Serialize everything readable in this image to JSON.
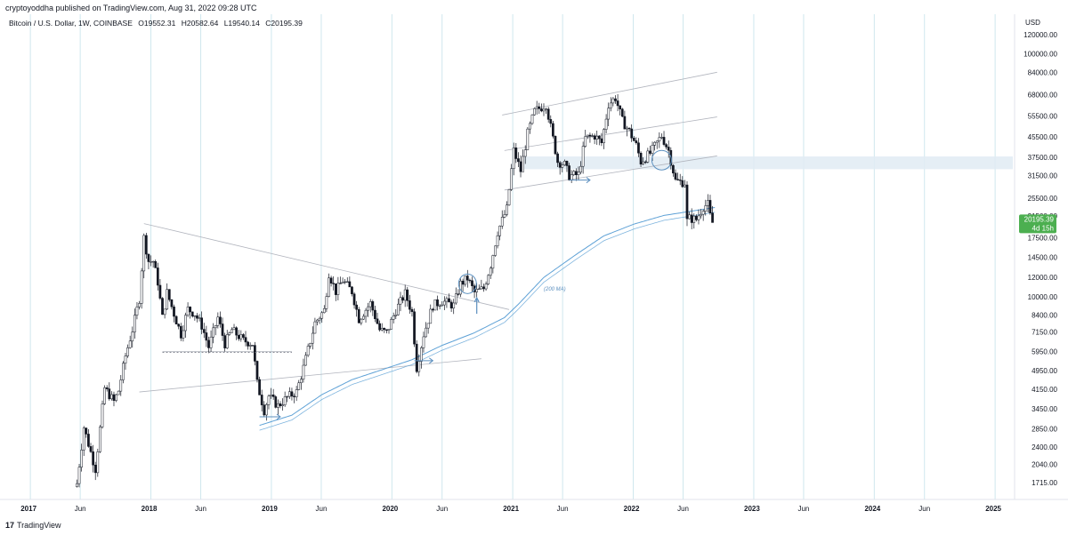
{
  "header": {
    "published_by": "cryptoyoddha published on TradingView.com, Aug 31, 2022 09:28 UTC",
    "symbol": "Bitcoin / U.S. Dollar, 1W, COINBASE",
    "open": "O19552.31",
    "high": "H20582.64",
    "low": "L19540.14",
    "close": "C20195.39"
  },
  "footer": {
    "logo_mark": "17",
    "brand": "TradingView"
  },
  "colors": {
    "candle": "#131722",
    "ma_line": "#5ea1d6",
    "trendline": "#b2b5be",
    "zone_fill": "#e1ebf3",
    "annotation": "#5b8fbf",
    "grid_vertical": "#cfe7ee",
    "price_badge": "#4caf50"
  },
  "chart_data": {
    "type": "candlestick",
    "title": "",
    "xlabel": "",
    "ylabel": "",
    "currency": "USD",
    "scale": "log",
    "ylim": [
      1500,
      140000
    ],
    "xlim": [
      "2016-10-01",
      "2025-03-01"
    ],
    "legend": "none",
    "grid": "vertical lines at yearly and half-yearly ticks",
    "x_ticks": [
      {
        "label": "2017",
        "date": "2017-01-01"
      },
      {
        "label": "Jun",
        "date": "2017-06-01"
      },
      {
        "label": "2018",
        "date": "2018-01-01"
      },
      {
        "label": "Jun",
        "date": "2018-06-01"
      },
      {
        "label": "2019",
        "date": "2019-01-01"
      },
      {
        "label": "Jun",
        "date": "2019-06-01"
      },
      {
        "label": "2020",
        "date": "2020-01-01"
      },
      {
        "label": "Jun",
        "date": "2020-06-01"
      },
      {
        "label": "2021",
        "date": "2021-01-01"
      },
      {
        "label": "Jun",
        "date": "2021-06-01"
      },
      {
        "label": "2022",
        "date": "2022-01-01"
      },
      {
        "label": "Jun",
        "date": "2022-06-01"
      },
      {
        "label": "2023",
        "date": "2023-01-01"
      },
      {
        "label": "Jun",
        "date": "2023-06-01"
      },
      {
        "label": "2024",
        "date": "2024-01-01"
      },
      {
        "label": "Jun",
        "date": "2024-06-01"
      },
      {
        "label": "2025",
        "date": "2025-01-01"
      }
    ],
    "y_ticks": [
      {
        "label": "120000.00",
        "value": 120000
      },
      {
        "label": "100000.00",
        "value": 100000
      },
      {
        "label": "84000.00",
        "value": 84000
      },
      {
        "label": "68000.00",
        "value": 68000
      },
      {
        "label": "55500.00",
        "value": 55500
      },
      {
        "label": "45500.00",
        "value": 45500
      },
      {
        "label": "37500.00",
        "value": 37500
      },
      {
        "label": "31500.00",
        "value": 31500
      },
      {
        "label": "25500.00",
        "value": 25500
      },
      {
        "label": "21500.00",
        "value": 21500
      },
      {
        "label": "17500.00",
        "value": 17500
      },
      {
        "label": "14500.00",
        "value": 14500
      },
      {
        "label": "12000.00",
        "value": 12000
      },
      {
        "label": "10000.00",
        "value": 10000
      },
      {
        "label": "8400.00",
        "value": 8400
      },
      {
        "label": "7150.00",
        "value": 7150
      },
      {
        "label": "5950.00",
        "value": 5950
      },
      {
        "label": "4950.00",
        "value": 4950
      },
      {
        "label": "4150.00",
        "value": 4150
      },
      {
        "label": "3450.00",
        "value": 3450
      },
      {
        "label": "2850.00",
        "value": 2850
      },
      {
        "label": "2400.00",
        "value": 2400
      },
      {
        "label": "2040.00",
        "value": 2040
      },
      {
        "label": "1715.00",
        "value": 1715
      }
    ],
    "last_price": {
      "label": "20195.39",
      "countdown": "4d 15h",
      "value": 20195.39
    },
    "price_path": [
      [
        "2017-05-22",
        1700
      ],
      [
        "2017-06-12",
        2900
      ],
      [
        "2017-07-17",
        1950
      ],
      [
        "2017-08-14",
        4200
      ],
      [
        "2017-09-11",
        3700
      ],
      [
        "2017-09-25",
        4100
      ],
      [
        "2017-10-16",
        5700
      ],
      [
        "2017-11-06",
        7300
      ],
      [
        "2017-11-27",
        9800
      ],
      [
        "2017-12-11",
        17500
      ],
      [
        "2017-12-25",
        14000
      ],
      [
        "2018-01-08",
        14000
      ],
      [
        "2018-01-22",
        11500
      ],
      [
        "2018-02-05",
        8200
      ],
      [
        "2018-02-19",
        10400
      ],
      [
        "2018-03-12",
        8500
      ],
      [
        "2018-04-02",
        7000
      ],
      [
        "2018-04-23",
        8900
      ],
      [
        "2018-05-14",
        8500
      ],
      [
        "2018-06-04",
        7600
      ],
      [
        "2018-06-25",
        6200
      ],
      [
        "2018-07-23",
        8200
      ],
      [
        "2018-08-13",
        6400
      ],
      [
        "2018-09-03",
        7300
      ],
      [
        "2018-10-08",
        6600
      ],
      [
        "2018-11-05",
        6400
      ],
      [
        "2018-11-19",
        4400
      ],
      [
        "2018-12-10",
        3400
      ],
      [
        "2018-12-24",
        3900
      ],
      [
        "2019-01-21",
        3550
      ],
      [
        "2019-02-18",
        3850
      ],
      [
        "2019-03-18",
        4050
      ],
      [
        "2019-04-08",
        5100
      ],
      [
        "2019-05-13",
        7800
      ],
      [
        "2019-06-10",
        8800
      ],
      [
        "2019-06-24",
        12500
      ],
      [
        "2019-07-15",
        10500
      ],
      [
        "2019-08-05",
        11700
      ],
      [
        "2019-09-02",
        10500
      ],
      [
        "2019-09-23",
        8100
      ],
      [
        "2019-10-28",
        9400
      ],
      [
        "2019-11-25",
        7300
      ],
      [
        "2019-12-16",
        7100
      ],
      [
        "2020-01-13",
        8800
      ],
      [
        "2020-02-10",
        10300
      ],
      [
        "2020-03-02",
        8600
      ],
      [
        "2020-03-16",
        5100
      ],
      [
        "2020-04-06",
        7000
      ],
      [
        "2020-05-04",
        9200
      ],
      [
        "2020-06-01",
        9600
      ],
      [
        "2020-07-06",
        9200
      ],
      [
        "2020-07-27",
        11300
      ],
      [
        "2020-08-17",
        11900
      ],
      [
        "2020-09-07",
        10400
      ],
      [
        "2020-10-05",
        10800
      ],
      [
        "2020-10-26",
        13500
      ],
      [
        "2020-11-16",
        18500
      ],
      [
        "2020-12-14",
        23000
      ],
      [
        "2021-01-04",
        40000
      ],
      [
        "2021-01-25",
        33000
      ],
      [
        "2021-02-15",
        47000
      ],
      [
        "2021-03-08",
        58000
      ],
      [
        "2021-04-12",
        62000
      ],
      [
        "2021-05-17",
        36000
      ],
      [
        "2021-06-07",
        35000
      ],
      [
        "2021-06-21",
        31500
      ],
      [
        "2021-07-19",
        31800
      ],
      [
        "2021-08-09",
        45000
      ],
      [
        "2021-09-06",
        46000
      ],
      [
        "2021-09-27",
        43000
      ],
      [
        "2021-10-18",
        62000
      ],
      [
        "2021-11-08",
        66000
      ],
      [
        "2021-11-29",
        53000
      ],
      [
        "2021-12-20",
        48000
      ],
      [
        "2022-01-10",
        42000
      ],
      [
        "2022-01-24",
        36000
      ],
      [
        "2022-02-21",
        39000
      ],
      [
        "2022-03-28",
        46000
      ],
      [
        "2022-04-18",
        40000
      ],
      [
        "2022-05-09",
        30000
      ],
      [
        "2022-06-06",
        29500
      ],
      [
        "2022-06-13",
        20500
      ],
      [
        "2022-06-20",
        21000
      ],
      [
        "2022-07-11",
        20800
      ],
      [
        "2022-08-01",
        23500
      ],
      [
        "2022-08-15",
        24000
      ],
      [
        "2022-08-22",
        21500
      ],
      [
        "2022-08-29",
        20195
      ]
    ],
    "ma_200_path": [
      [
        "2018-11-26",
        2950
      ],
      [
        "2019-03-04",
        3250
      ],
      [
        "2019-06-03",
        3950
      ],
      [
        "2019-09-02",
        4550
      ],
      [
        "2019-12-02",
        5000
      ],
      [
        "2020-03-02",
        5500
      ],
      [
        "2020-06-01",
        6300
      ],
      [
        "2020-09-07",
        7100
      ],
      [
        "2020-12-07",
        8200
      ],
      [
        "2021-01-18",
        9300
      ],
      [
        "2021-04-05",
        12000
      ],
      [
        "2021-07-05",
        14700
      ],
      [
        "2021-10-04",
        17800
      ],
      [
        "2022-01-03",
        19900
      ],
      [
        "2022-04-04",
        21600
      ],
      [
        "2022-07-04",
        22600
      ],
      [
        "2022-09-05",
        23300
      ]
    ],
    "annotations": {
      "ma_label": "(200 MA)",
      "resistance_zone": [
        33500,
        37800
      ],
      "trendlines": [
        {
          "from": [
            "2017-11-27",
            4050
          ],
          "to": [
            "2020-09-28",
            5550
          ]
        },
        {
          "from": [
            "2017-12-11",
            20000
          ],
          "to": [
            "2020-12-21",
            8850
          ]
        },
        {
          "from": [
            "2018-02-05",
            5950
          ],
          "to": [
            "2019-03-04",
            5950
          ]
        },
        {
          "from": [
            "2020-11-30",
            56000
          ],
          "to": [
            "2022-09-12",
            84000
          ]
        },
        {
          "from": [
            "2020-12-07",
            40000
          ],
          "to": [
            "2022-09-12",
            55000
          ]
        },
        {
          "from": [
            "2020-12-07",
            27500
          ],
          "to": [
            "2022-09-12",
            38000
          ]
        }
      ]
    }
  }
}
